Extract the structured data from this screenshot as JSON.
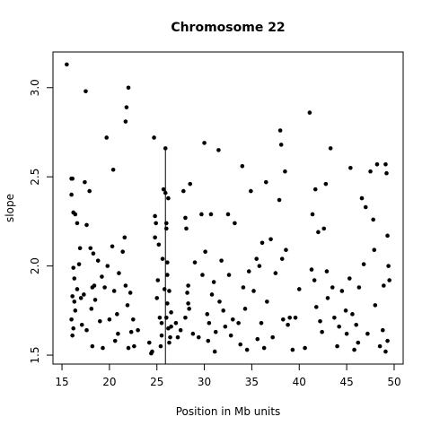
{
  "chart_data": {
    "type": "scatter",
    "title": "Chromosome 22",
    "xlabel": "Position in Mb units",
    "ylabel": "slope",
    "xlim": [
      14.05,
      50.95
    ],
    "ylim": [
      1.45,
      3.2
    ],
    "xticks": [
      15,
      20,
      25,
      30,
      35,
      40,
      45,
      50
    ],
    "yticks": [
      1.5,
      {
        "value": 2,
        "label": "2.0"
      },
      2.5,
      {
        "value": 3,
        "label": "3.0"
      }
    ],
    "color": "#000000",
    "segments": [
      {
        "x": 25.9,
        "y": [
          1.45,
          2.66
        ]
      }
    ],
    "series": [
      {
        "name": null,
        "color": "#000000",
        "x": [
          15.5,
          16.0,
          16.1,
          16.0,
          16.2,
          16.4,
          16.6,
          16.2,
          16.3,
          16.1,
          16.3,
          16.0,
          16.2,
          16.1,
          16.4,
          16.6,
          16.8,
          16.9,
          17.0,
          17.1,
          17.3,
          17.4,
          17.5,
          17.6,
          17.6,
          17.9,
          18.0,
          18.2,
          18.3,
          18.4,
          18.5,
          18.2,
          18.1,
          18.8,
          19.0,
          19.2,
          19.3,
          19.5,
          19.7,
          19.8,
          20.0,
          20.3,
          20.4,
          20.6,
          20.5,
          20.9,
          21.0,
          21.4,
          21.7,
          21.8,
          22.0,
          21.6,
          21.7,
          21.9,
          22.2,
          22.3,
          22.0,
          22.5,
          22.6,
          23.0,
          24.2,
          24.5,
          24.4,
          24.7,
          24.8,
          24.9,
          24.8,
          25.0,
          25.1,
          25.2,
          25.3,
          25.4,
          25.5,
          25.5,
          25.6,
          25.7,
          25.8,
          25.9,
          25.9,
          26.0,
          26.0,
          26.1,
          26.2,
          26.1,
          26.0,
          26.2,
          26.3,
          26.3,
          26.1,
          26.4,
          26.5,
          26.5,
          27.2,
          27.5,
          27.8,
          28.0,
          28.1,
          28.3,
          28.2,
          28.4,
          28.0,
          28.3,
          28.5,
          28.8,
          29.0,
          29.4,
          29.7,
          29.8,
          30.0,
          30.1,
          30.3,
          30.4,
          30.5,
          30.7,
          30.8,
          31.0,
          31.1,
          31.2,
          31.5,
          31.6,
          31.8,
          32.0,
          32.2,
          32.5,
          32.6,
          32.8,
          33.0,
          33.2,
          33.6,
          34.0,
          34.1,
          34.3,
          34.5,
          34.7,
          34.9,
          35.2,
          35.5,
          35.6,
          35.8,
          36.0,
          36.1,
          36.3,
          36.5,
          36.6,
          37.0,
          37.2,
          37.5,
          37.9,
          38.0,
          38.1,
          38.2,
          38.3,
          38.5,
          38.6,
          38.8,
          39.0,
          39.3,
          40.0,
          40.6,
          41.1,
          41.3,
          41.4,
          41.6,
          41.7,
          41.8,
          42.0,
          42.2,
          42.4,
          42.6,
          42.8,
          42.9,
          43.0,
          43.3,
          43.5,
          43.7,
          44.0,
          44.2,
          44.5,
          45.0,
          45.4,
          45.3,
          45.6,
          45.8,
          46.0,
          46.3,
          46.6,
          46.8,
          47.0,
          47.2,
          47.5,
          47.8,
          47.9,
          48.0,
          48.2,
          48.5,
          48.8,
          48.9,
          49.1,
          49.2,
          49.3,
          49.4,
          49.5,
          49.3,
          49.1,
          39.6,
          33.8,
          27.0,
          20.8,
          44.9,
          46.2
        ],
        "values": [
          3.13,
          2.49,
          2.49,
          2.4,
          2.3,
          2.29,
          2.24,
          1.99,
          1.93,
          1.83,
          1.8,
          1.7,
          1.65,
          1.61,
          1.75,
          1.87,
          2.01,
          2.1,
          1.82,
          1.67,
          1.84,
          2.47,
          2.98,
          2.23,
          1.64,
          2.42,
          2.1,
          1.88,
          2.07,
          1.89,
          1.81,
          1.55,
          1.76,
          2.03,
          1.69,
          1.94,
          1.54,
          1.88,
          2.72,
          2.0,
          1.7,
          2.11,
          2.54,
          1.58,
          1.86,
          1.62,
          1.96,
          2.08,
          2.81,
          2.89,
          3.0,
          2.16,
          1.89,
          1.78,
          1.85,
          1.63,
          1.54,
          1.7,
          1.55,
          1.64,
          1.57,
          1.52,
          1.51,
          2.72,
          2.28,
          2.24,
          2.16,
          1.82,
          1.92,
          2.12,
          1.71,
          1.55,
          1.68,
          1.61,
          2.04,
          2.43,
          1.87,
          2.66,
          2.41,
          2.24,
          2.21,
          2.02,
          2.38,
          1.79,
          1.71,
          1.65,
          1.57,
          1.86,
          1.95,
          1.6,
          1.74,
          1.66,
          1.6,
          1.64,
          2.42,
          2.27,
          2.21,
          1.89,
          1.85,
          1.76,
          1.71,
          1.79,
          2.46,
          1.62,
          2.02,
          1.6,
          2.29,
          1.95,
          2.69,
          2.08,
          1.73,
          1.58,
          1.68,
          2.29,
          1.84,
          1.91,
          1.52,
          1.63,
          2.65,
          1.8,
          2.03,
          1.75,
          1.66,
          2.29,
          1.95,
          1.61,
          1.7,
          2.24,
          1.68,
          2.56,
          1.88,
          1.76,
          1.53,
          1.97,
          2.42,
          1.86,
          2.04,
          1.59,
          2.0,
          1.68,
          2.13,
          1.54,
          2.47,
          1.8,
          2.15,
          1.6,
          1.96,
          2.37,
          2.76,
          2.68,
          2.04,
          1.7,
          2.53,
          2.09,
          1.67,
          1.71,
          1.53,
          1.87,
          1.54,
          2.86,
          1.98,
          2.29,
          1.92,
          2.43,
          1.77,
          2.19,
          1.69,
          1.63,
          2.21,
          2.46,
          1.97,
          1.82,
          2.66,
          1.88,
          1.71,
          1.55,
          1.66,
          1.86,
          1.62,
          2.55,
          1.93,
          1.73,
          1.53,
          1.67,
          1.88,
          2.38,
          2.01,
          2.33,
          1.62,
          2.53,
          2.26,
          2.09,
          1.78,
          2.57,
          1.55,
          1.64,
          1.89,
          2.57,
          2.52,
          2.17,
          2.0,
          1.92,
          1.58,
          1.52,
          1.71,
          1.56,
          1.68,
          1.73,
          1.75,
          1.57
        ]
      }
    ]
  }
}
